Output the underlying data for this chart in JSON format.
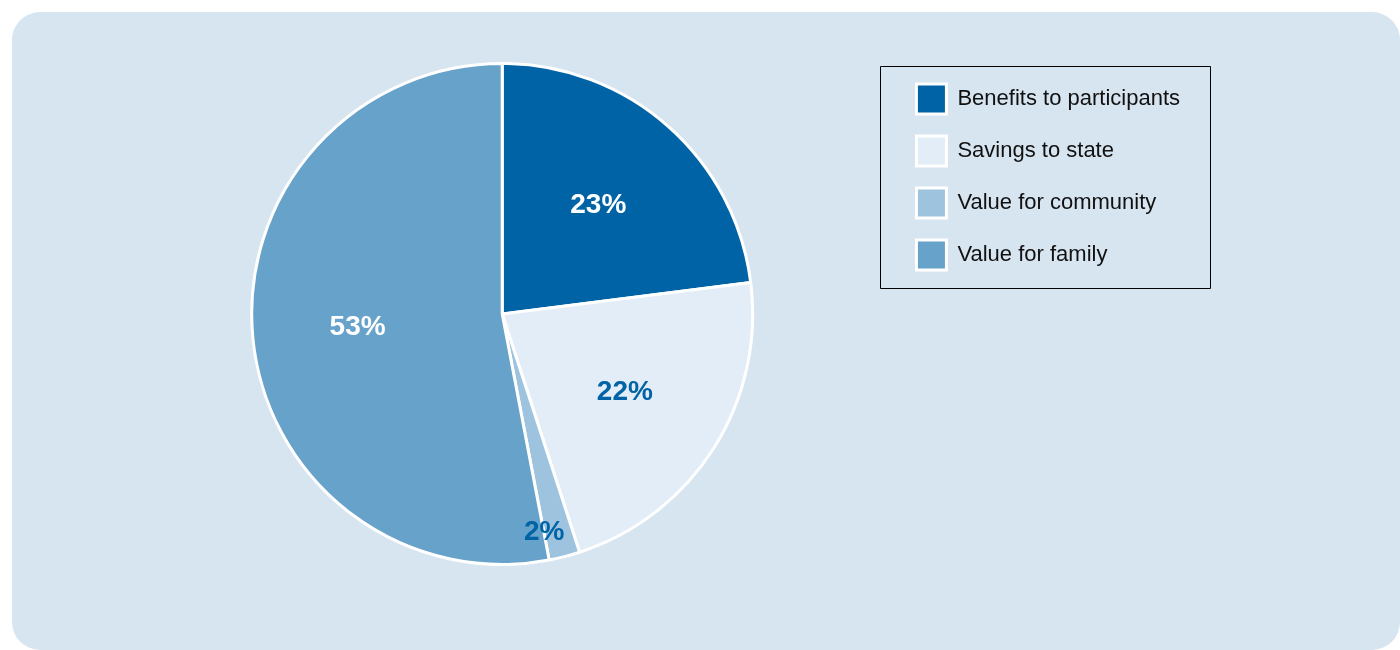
{
  "chart_data": {
    "type": "pie",
    "categories": [
      "Benefits to participants",
      "Savings to state",
      "Value for community",
      "Value for family"
    ],
    "values": [
      23,
      22,
      2,
      53
    ],
    "value_labels": [
      "23%",
      "22%",
      "2%",
      "53%"
    ],
    "colors": [
      "#0063a6",
      "#e3edf7",
      "#9dc3de",
      "#67a2ca"
    ],
    "legend": "top right"
  }
}
